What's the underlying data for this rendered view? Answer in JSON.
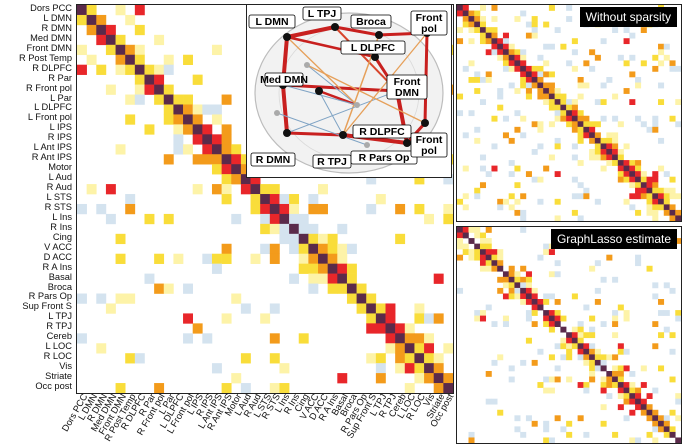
{
  "regions": [
    "Dors PCC",
    "L DMN",
    "R DMN",
    "Med DMN",
    "Front DMN",
    "R Post Temp",
    "R DLPFC",
    "R Par",
    "R Front pol",
    "L Par",
    "L DLPFC",
    "L Front pol",
    "L IPS",
    "R IPS",
    "L Ant IPS",
    "R Ant IPS",
    "Motor",
    "L Aud",
    "R Aud",
    "L STS",
    "R STS",
    "L Ins",
    "R Ins",
    "Cing",
    "V ACC",
    "D ACC",
    "R A Ins",
    "Basal",
    "Broca",
    "R Pars Op",
    "Sup Front S",
    "L TPJ",
    "R TPJ",
    "Cereb",
    "L LOC",
    "R LOC",
    "Vis",
    "Striate",
    "Occ post"
  ],
  "panels": {
    "top_title": "Without sparsity",
    "bottom_title": "GraphLasso estimate"
  },
  "brain": {
    "labels": [
      "L DMN",
      "L TPJ",
      "Broca",
      "Front pol",
      "L DLPFC",
      "Med DMN",
      "Front DMN",
      "R DLPFC",
      "R DMN",
      "R TPJ",
      "R Pars Op",
      "Front pol"
    ]
  },
  "colors": {
    "diagonal": "#5a2a4a",
    "strong": "#e8262a",
    "medium": "#f39b1b",
    "weak": "#f9dd3a",
    "faint": "#fdf3a8",
    "negative": "#d4e3ef",
    "edge": "#c8201f"
  }
}
